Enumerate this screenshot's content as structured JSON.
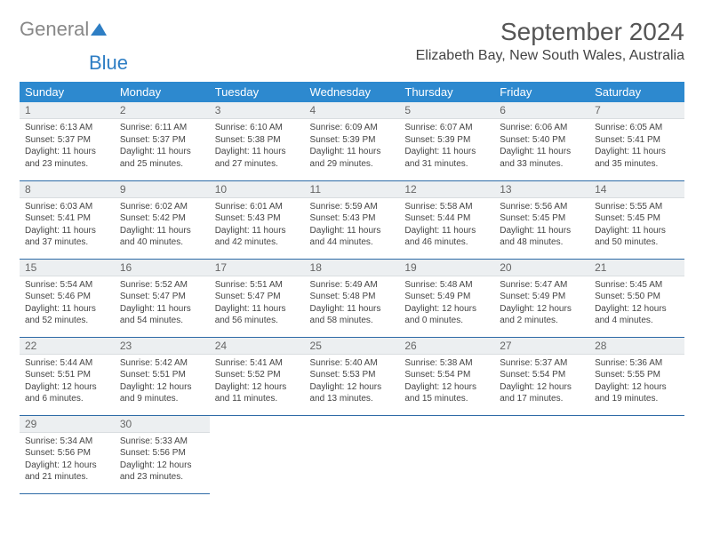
{
  "logo": {
    "part1": "General",
    "part2": "Blue"
  },
  "title": "September 2024",
  "location": "Elizabeth Bay, New South Wales, Australia",
  "weekdays": [
    "Sunday",
    "Monday",
    "Tuesday",
    "Wednesday",
    "Thursday",
    "Friday",
    "Saturday"
  ],
  "colors": {
    "header_bg": "#2d89cf",
    "header_text": "#ffffff",
    "daynum_bg": "#eceff1",
    "row_border": "#2d6aa6",
    "logo_gray": "#888888",
    "logo_blue": "#2e7ec4"
  },
  "week1": {
    "d0": {
      "num": "1",
      "l1": "Sunrise: 6:13 AM",
      "l2": "Sunset: 5:37 PM",
      "l3": "Daylight: 11 hours",
      "l4": "and 23 minutes."
    },
    "d1": {
      "num": "2",
      "l1": "Sunrise: 6:11 AM",
      "l2": "Sunset: 5:37 PM",
      "l3": "Daylight: 11 hours",
      "l4": "and 25 minutes."
    },
    "d2": {
      "num": "3",
      "l1": "Sunrise: 6:10 AM",
      "l2": "Sunset: 5:38 PM",
      "l3": "Daylight: 11 hours",
      "l4": "and 27 minutes."
    },
    "d3": {
      "num": "4",
      "l1": "Sunrise: 6:09 AM",
      "l2": "Sunset: 5:39 PM",
      "l3": "Daylight: 11 hours",
      "l4": "and 29 minutes."
    },
    "d4": {
      "num": "5",
      "l1": "Sunrise: 6:07 AM",
      "l2": "Sunset: 5:39 PM",
      "l3": "Daylight: 11 hours",
      "l4": "and 31 minutes."
    },
    "d5": {
      "num": "6",
      "l1": "Sunrise: 6:06 AM",
      "l2": "Sunset: 5:40 PM",
      "l3": "Daylight: 11 hours",
      "l4": "and 33 minutes."
    },
    "d6": {
      "num": "7",
      "l1": "Sunrise: 6:05 AM",
      "l2": "Sunset: 5:41 PM",
      "l3": "Daylight: 11 hours",
      "l4": "and 35 minutes."
    }
  },
  "week2": {
    "d0": {
      "num": "8",
      "l1": "Sunrise: 6:03 AM",
      "l2": "Sunset: 5:41 PM",
      "l3": "Daylight: 11 hours",
      "l4": "and 37 minutes."
    },
    "d1": {
      "num": "9",
      "l1": "Sunrise: 6:02 AM",
      "l2": "Sunset: 5:42 PM",
      "l3": "Daylight: 11 hours",
      "l4": "and 40 minutes."
    },
    "d2": {
      "num": "10",
      "l1": "Sunrise: 6:01 AM",
      "l2": "Sunset: 5:43 PM",
      "l3": "Daylight: 11 hours",
      "l4": "and 42 minutes."
    },
    "d3": {
      "num": "11",
      "l1": "Sunrise: 5:59 AM",
      "l2": "Sunset: 5:43 PM",
      "l3": "Daylight: 11 hours",
      "l4": "and 44 minutes."
    },
    "d4": {
      "num": "12",
      "l1": "Sunrise: 5:58 AM",
      "l2": "Sunset: 5:44 PM",
      "l3": "Daylight: 11 hours",
      "l4": "and 46 minutes."
    },
    "d5": {
      "num": "13",
      "l1": "Sunrise: 5:56 AM",
      "l2": "Sunset: 5:45 PM",
      "l3": "Daylight: 11 hours",
      "l4": "and 48 minutes."
    },
    "d6": {
      "num": "14",
      "l1": "Sunrise: 5:55 AM",
      "l2": "Sunset: 5:45 PM",
      "l3": "Daylight: 11 hours",
      "l4": "and 50 minutes."
    }
  },
  "week3": {
    "d0": {
      "num": "15",
      "l1": "Sunrise: 5:54 AM",
      "l2": "Sunset: 5:46 PM",
      "l3": "Daylight: 11 hours",
      "l4": "and 52 minutes."
    },
    "d1": {
      "num": "16",
      "l1": "Sunrise: 5:52 AM",
      "l2": "Sunset: 5:47 PM",
      "l3": "Daylight: 11 hours",
      "l4": "and 54 minutes."
    },
    "d2": {
      "num": "17",
      "l1": "Sunrise: 5:51 AM",
      "l2": "Sunset: 5:47 PM",
      "l3": "Daylight: 11 hours",
      "l4": "and 56 minutes."
    },
    "d3": {
      "num": "18",
      "l1": "Sunrise: 5:49 AM",
      "l2": "Sunset: 5:48 PM",
      "l3": "Daylight: 11 hours",
      "l4": "and 58 minutes."
    },
    "d4": {
      "num": "19",
      "l1": "Sunrise: 5:48 AM",
      "l2": "Sunset: 5:49 PM",
      "l3": "Daylight: 12 hours",
      "l4": "and 0 minutes."
    },
    "d5": {
      "num": "20",
      "l1": "Sunrise: 5:47 AM",
      "l2": "Sunset: 5:49 PM",
      "l3": "Daylight: 12 hours",
      "l4": "and 2 minutes."
    },
    "d6": {
      "num": "21",
      "l1": "Sunrise: 5:45 AM",
      "l2": "Sunset: 5:50 PM",
      "l3": "Daylight: 12 hours",
      "l4": "and 4 minutes."
    }
  },
  "week4": {
    "d0": {
      "num": "22",
      "l1": "Sunrise: 5:44 AM",
      "l2": "Sunset: 5:51 PM",
      "l3": "Daylight: 12 hours",
      "l4": "and 6 minutes."
    },
    "d1": {
      "num": "23",
      "l1": "Sunrise: 5:42 AM",
      "l2": "Sunset: 5:51 PM",
      "l3": "Daylight: 12 hours",
      "l4": "and 9 minutes."
    },
    "d2": {
      "num": "24",
      "l1": "Sunrise: 5:41 AM",
      "l2": "Sunset: 5:52 PM",
      "l3": "Daylight: 12 hours",
      "l4": "and 11 minutes."
    },
    "d3": {
      "num": "25",
      "l1": "Sunrise: 5:40 AM",
      "l2": "Sunset: 5:53 PM",
      "l3": "Daylight: 12 hours",
      "l4": "and 13 minutes."
    },
    "d4": {
      "num": "26",
      "l1": "Sunrise: 5:38 AM",
      "l2": "Sunset: 5:54 PM",
      "l3": "Daylight: 12 hours",
      "l4": "and 15 minutes."
    },
    "d5": {
      "num": "27",
      "l1": "Sunrise: 5:37 AM",
      "l2": "Sunset: 5:54 PM",
      "l3": "Daylight: 12 hours",
      "l4": "and 17 minutes."
    },
    "d6": {
      "num": "28",
      "l1": "Sunrise: 5:36 AM",
      "l2": "Sunset: 5:55 PM",
      "l3": "Daylight: 12 hours",
      "l4": "and 19 minutes."
    }
  },
  "week5": {
    "d0": {
      "num": "29",
      "l1": "Sunrise: 5:34 AM",
      "l2": "Sunset: 5:56 PM",
      "l3": "Daylight: 12 hours",
      "l4": "and 21 minutes."
    },
    "d1": {
      "num": "30",
      "l1": "Sunrise: 5:33 AM",
      "l2": "Sunset: 5:56 PM",
      "l3": "Daylight: 12 hours",
      "l4": "and 23 minutes."
    }
  }
}
